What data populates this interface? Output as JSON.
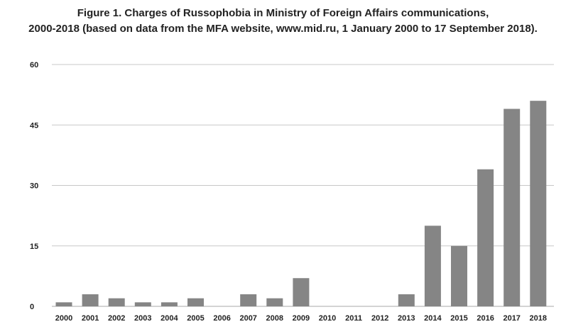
{
  "chart_data": {
    "type": "bar",
    "title_line1": "Figure 1. Charges of Russophobia in Ministry of Foreign Affairs communications,",
    "title_line2": "2000-2018 (based on data from the MFA website, www.mid.ru, 1 January 2000 to 17 September 2018).",
    "xlabel": "",
    "ylabel": "",
    "categories": [
      "2000",
      "2001",
      "2002",
      "2003",
      "2004",
      "2005",
      "2006",
      "2007",
      "2008",
      "2009",
      "2010",
      "2011",
      "2012",
      "2013",
      "2014",
      "2015",
      "2016",
      "2017",
      "2018"
    ],
    "values": [
      1,
      3,
      2,
      1,
      1,
      2,
      0,
      3,
      2,
      7,
      0,
      0,
      0,
      3,
      20,
      15,
      34,
      49,
      51
    ],
    "ylim": [
      0,
      60
    ],
    "yticks": [
      0,
      15,
      30,
      45,
      60
    ],
    "grid": true,
    "legend": "none",
    "bar_color": "#858585",
    "grid_color": "#c8c8c8"
  }
}
